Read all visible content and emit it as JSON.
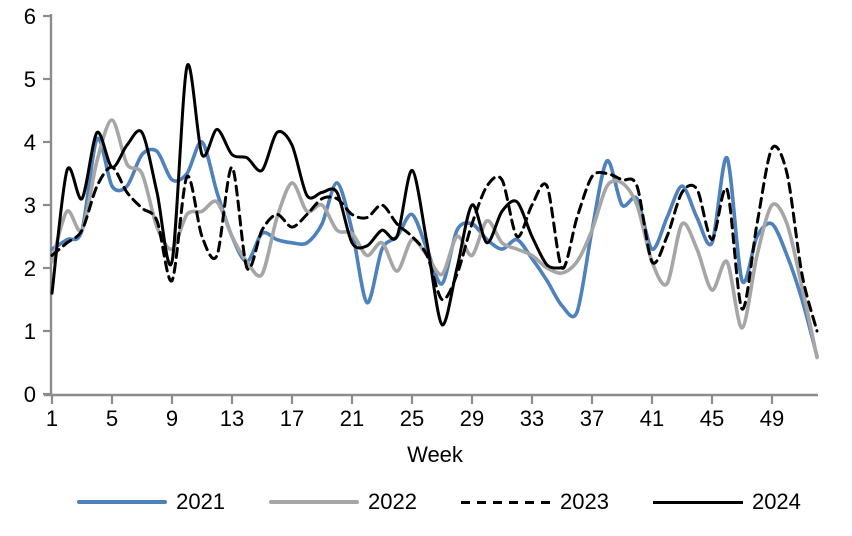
{
  "chart_data": {
    "type": "line",
    "xlabel": "Week",
    "xlim": [
      1,
      52
    ],
    "ylim": [
      0,
      6
    ],
    "x_ticks": [
      1,
      5,
      9,
      13,
      17,
      21,
      25,
      29,
      33,
      37,
      41,
      45,
      49
    ],
    "y_ticks": [
      0,
      1,
      2,
      3,
      4,
      5,
      6
    ],
    "grid": false,
    "legend_position": "bottom",
    "axis_color": "#8C8C8C",
    "smoothed_lines": true,
    "series": [
      {
        "name": "2021",
        "color": "#4F81BD",
        "style": "solid",
        "width": 3.6,
        "values": [
          2.3,
          2.45,
          2.6,
          4.05,
          3.3,
          3.3,
          3.8,
          3.85,
          3.4,
          3.5,
          4.0,
          3.2,
          2.5,
          2.1,
          2.55,
          2.45,
          2.4,
          2.4,
          2.7,
          3.35,
          2.6,
          1.45,
          2.3,
          2.5,
          2.85,
          2.3,
          1.75,
          2.6,
          2.7,
          2.45,
          2.3,
          2.45,
          2.15,
          1.8,
          1.4,
          1.3,
          2.6,
          3.7,
          3.0,
          3.1,
          2.3,
          2.8,
          3.3,
          2.8,
          2.4,
          3.75,
          1.8,
          2.5,
          2.7,
          2.2,
          1.5,
          0.6
        ]
      },
      {
        "name": "2022",
        "color": "#A6A6A6",
        "style": "solid",
        "width": 3.6,
        "values": [
          2.1,
          2.9,
          2.6,
          3.7,
          4.35,
          3.65,
          3.5,
          2.65,
          2.3,
          2.85,
          2.9,
          3.05,
          2.5,
          2.1,
          1.9,
          2.8,
          3.35,
          2.9,
          3.0,
          2.6,
          2.55,
          2.2,
          2.4,
          1.95,
          2.45,
          2.2,
          1.9,
          2.5,
          2.2,
          2.75,
          2.4,
          2.3,
          2.2,
          2.0,
          1.92,
          2.1,
          2.6,
          3.3,
          3.35,
          3.0,
          2.1,
          1.75,
          2.7,
          2.3,
          1.65,
          2.1,
          1.05,
          2.2,
          3.0,
          2.7,
          1.7,
          0.58
        ]
      },
      {
        "name": "2023",
        "color": "#000000",
        "style": "dashed",
        "width": 3,
        "values": [
          2.2,
          2.4,
          2.6,
          3.3,
          3.6,
          3.2,
          2.95,
          2.75,
          1.8,
          3.45,
          2.5,
          2.2,
          3.6,
          2.0,
          2.6,
          2.85,
          2.65,
          2.85,
          3.1,
          3.1,
          2.85,
          2.8,
          3.0,
          2.7,
          2.5,
          2.2,
          1.5,
          1.9,
          2.7,
          3.3,
          3.4,
          2.5,
          3.0,
          3.3,
          2.0,
          2.8,
          3.45,
          3.5,
          3.4,
          3.3,
          2.1,
          2.5,
          3.2,
          3.25,
          2.45,
          3.25,
          1.35,
          2.7,
          3.9,
          3.5,
          1.9,
          1.0
        ]
      },
      {
        "name": "2024",
        "color": "#000000",
        "style": "solid",
        "width": 3,
        "values": [
          1.6,
          3.55,
          3.1,
          4.15,
          3.6,
          3.95,
          4.15,
          3.2,
          2.1,
          5.2,
          3.8,
          4.2,
          3.8,
          3.75,
          3.55,
          4.15,
          3.95,
          3.15,
          3.2,
          3.2,
          2.4,
          2.35,
          2.6,
          2.5,
          3.55,
          2.4,
          1.1,
          2.0,
          3.0,
          2.4,
          2.9,
          3.05,
          2.5,
          2.05,
          2.0
        ]
      }
    ]
  }
}
